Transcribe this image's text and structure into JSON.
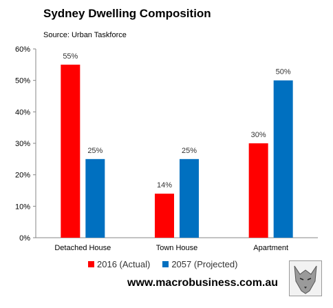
{
  "chart_data": {
    "type": "bar",
    "title": "Sydney Dwelling Composition",
    "subtitle": "Source: Urban Taskforce",
    "categories": [
      "Detached House",
      "Town House",
      "Apartment"
    ],
    "series": [
      {
        "name": "2016 (Actual)",
        "values": [
          55,
          14,
          30
        ],
        "labels": [
          "55%",
          "14%",
          "30%"
        ],
        "color": "#ff0000"
      },
      {
        "name": "2057 (Projected)",
        "values": [
          25,
          25,
          50
        ],
        "labels": [
          "25%",
          "25%",
          "50%"
        ],
        "color": "#0070c0"
      }
    ],
    "yticks": [
      "0%",
      "10%",
      "20%",
      "30%",
      "40%",
      "50%",
      "60%"
    ],
    "ylim": [
      0,
      60
    ],
    "grid": false,
    "legend_position": "bottom"
  },
  "footer": {
    "website": "www.macrobusiness.com.au",
    "logo_icon": "wolf-logo"
  }
}
